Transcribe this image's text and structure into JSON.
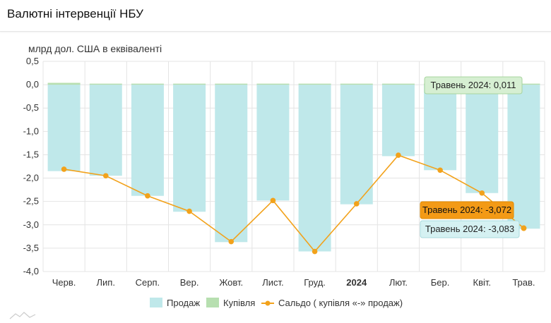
{
  "page": {
    "title": "Валютні інтервенції НБУ",
    "unit": "млрд дол. США в еквіваленті"
  },
  "colors": {
    "sales": "#bfe8ea",
    "purchases": "#b7dfb0",
    "balance": "#f2a21b",
    "grid": "#e4e4e4",
    "tooltip_purchase_bg": "#d6efd2",
    "tooltip_purchase_border": "#a8d59f",
    "tooltip_balance_bg": "#f39a16",
    "tooltip_balance_border": "#e08a00",
    "tooltip_sales_bg": "#d5f1f2",
    "tooltip_sales_border": "#a8dadd"
  },
  "chart_data": {
    "type": "bar",
    "categories": [
      "Черв.",
      "Лип.",
      "Серп.",
      "Вер.",
      "Жовт.",
      "Лист.",
      "Груд.",
      "2024",
      "Лют.",
      "Бер.",
      "Квіт.",
      "Трав."
    ],
    "bold_categories": [
      "2024"
    ],
    "series": [
      {
        "name": "Продаж",
        "kind": "bar",
        "values": [
          -1.85,
          -1.95,
          -2.38,
          -2.72,
          -3.37,
          -2.48,
          -3.57,
          -2.56,
          -1.53,
          -1.83,
          -2.32,
          -3.083
        ]
      },
      {
        "name": "Купівля",
        "kind": "bar",
        "values": [
          0.04,
          0.0,
          0.0,
          0.0,
          0.01,
          0.0,
          0.0,
          0.01,
          0.02,
          0.0,
          0.0,
          0.011
        ]
      },
      {
        "name": "Сальдо ( купівля «-» продаж)",
        "kind": "line",
        "values": [
          -1.81,
          -1.95,
          -2.38,
          -2.71,
          -3.36,
          -2.48,
          -3.57,
          -2.55,
          -1.51,
          -1.83,
          -2.32,
          -3.072
        ]
      }
    ],
    "ylim": [
      -4.0,
      0.5
    ],
    "yticks": [
      "0,5",
      "0,0",
      "-0,5",
      "-1,0",
      "-1,5",
      "-2,0",
      "-2,5",
      "-3,0",
      "-3,5",
      "-4,0"
    ],
    "ytick_values": [
      0.5,
      0.0,
      -0.5,
      -1.0,
      -1.5,
      -2.0,
      -2.5,
      -3.0,
      -3.5,
      -4.0
    ],
    "ylabel": "млрд дол. США в еквіваленті",
    "grid": true,
    "legend_position": "bottom",
    "tooltips": [
      {
        "series": "Купівля",
        "text": "Травень 2024: 0,011"
      },
      {
        "series": "Сальдо ( купівля «-» продаж)",
        "text": "Травень 2024: -3,072"
      },
      {
        "series": "Продаж",
        "text": "Травень 2024: -3,083"
      }
    ]
  }
}
